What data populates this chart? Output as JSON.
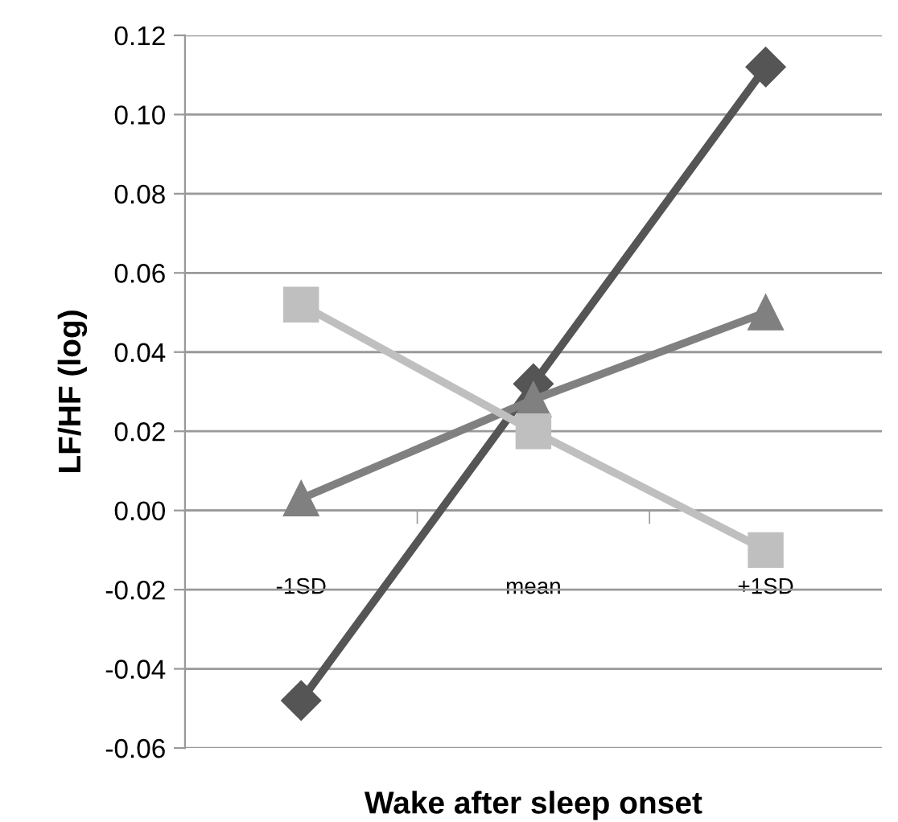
{
  "chart_data": {
    "type": "line",
    "xlabel": "Wake after sleep onset",
    "ylabel": "LF/HF (log)",
    "categories": [
      "-1SD",
      "mean",
      "+1SD"
    ],
    "series": [
      {
        "color": "#555555",
        "marker": "diamond",
        "values": [
          -0.048,
          0.032,
          0.112
        ]
      },
      {
        "color": "#808080",
        "marker": "triangle",
        "values": [
          0.003,
          0.028,
          0.05
        ]
      },
      {
        "color": "#bfbfbf",
        "marker": "square",
        "values": [
          0.052,
          0.02,
          -0.01
        ]
      }
    ],
    "ylim": [
      -0.06,
      0.12
    ],
    "yticks": [
      {
        "value": -0.06,
        "label": "-0.06"
      },
      {
        "value": -0.04,
        "label": "-0.04"
      },
      {
        "value": -0.02,
        "label": "-0.02"
      },
      {
        "value": 0,
        "label": "0.00"
      },
      {
        "value": 0.02,
        "label": "0.02"
      },
      {
        "value": 0.04,
        "label": "0.04"
      },
      {
        "value": 0.06,
        "label": "0.06"
      },
      {
        "value": 0.08,
        "label": "0.08"
      },
      {
        "value": 0.1,
        "label": "0.10"
      },
      {
        "value": 0.12,
        "label": "0.12"
      }
    ],
    "grid": "y",
    "legend": false,
    "line_style": "solid"
  }
}
